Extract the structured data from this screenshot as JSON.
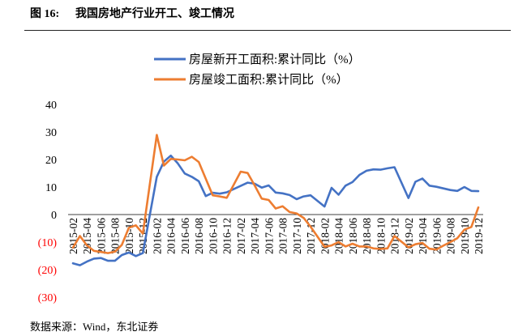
{
  "chart_data": {
    "type": "line",
    "figure_label": "图 16:",
    "title": "我国房地产行业开工、竣工情况",
    "grid": false,
    "legend_position": "top-center",
    "xlim": [
      "2015-02",
      "2019-12"
    ],
    "ylim": [
      -30,
      40
    ],
    "x_tick_labels": [
      "2015-02",
      "2015-04",
      "2015-06",
      "2015-08",
      "2015-10",
      "2015-12",
      "2016-02",
      "2016-04",
      "2016-06",
      "2016-08",
      "2016-10",
      "2016-12",
      "2017-02",
      "2017-04",
      "2017-06",
      "2017-08",
      "2017-10",
      "2017-12",
      "2018-02",
      "2018-04",
      "2018-06",
      "2018-08",
      "2018-10",
      "2018-12",
      "2019-02",
      "2019-04",
      "2019-06",
      "2019-08",
      "2019-10",
      "2019-12"
    ],
    "y_tick_values": [
      40,
      30,
      20,
      10,
      0,
      -10,
      -20,
      -30
    ],
    "y_tick_labels": [
      "40",
      "30",
      "20",
      "10",
      "0",
      "(10)",
      "(20)",
      "(30)"
    ],
    "tick_color": "#000000",
    "negative_tick_color": "#FF0000",
    "x": [
      "2015-02",
      "2015-03",
      "2015-04",
      "2015-05",
      "2015-06",
      "2015-07",
      "2015-08",
      "2015-09",
      "2015-10",
      "2015-11",
      "2015-12",
      "2016-02",
      "2016-03",
      "2016-04",
      "2016-05",
      "2016-06",
      "2016-07",
      "2016-08",
      "2016-09",
      "2016-10",
      "2016-11",
      "2016-12",
      "2017-02",
      "2017-03",
      "2017-04",
      "2017-05",
      "2017-06",
      "2017-07",
      "2017-08",
      "2017-09",
      "2017-10",
      "2017-11",
      "2017-12",
      "2018-02",
      "2018-03",
      "2018-04",
      "2018-05",
      "2018-06",
      "2018-07",
      "2018-08",
      "2018-09",
      "2018-10",
      "2018-11",
      "2018-12",
      "2019-02",
      "2019-03",
      "2019-04",
      "2019-05",
      "2019-06",
      "2019-07",
      "2019-08",
      "2019-09",
      "2019-10",
      "2019-11",
      "2019-12"
    ],
    "series": [
      {
        "name": "房屋新开工面积:累计同比（%）",
        "color": "#4472C4",
        "values": [
          -17.7,
          -18.4,
          -17.1,
          -16.0,
          -15.8,
          -16.8,
          -16.8,
          -14.7,
          -13.8,
          -15.1,
          -14.0,
          13.7,
          19.2,
          21.4,
          18.6,
          14.9,
          13.7,
          12.1,
          6.7,
          7.9,
          7.6,
          8.1,
          10.4,
          11.6,
          11.2,
          9.8,
          10.6,
          8.0,
          7.7,
          7.1,
          5.6,
          6.6,
          7.0,
          2.9,
          9.7,
          7.2,
          10.5,
          11.8,
          14.4,
          15.9,
          16.4,
          16.3,
          16.8,
          17.2,
          6.0,
          11.9,
          13.1,
          10.5,
          10.1,
          9.5,
          8.9,
          8.6,
          10.0,
          8.6,
          8.5
        ]
      },
      {
        "name": "房屋竣工面积:累计同比（%）",
        "color": "#ED7D31",
        "values": [
          -12.0,
          -7.8,
          -11.2,
          -13.2,
          -13.6,
          -14.0,
          -13.5,
          -11.0,
          -4.8,
          -3.9,
          -6.9,
          28.9,
          17.8,
          20.2,
          20.0,
          19.7,
          21.0,
          19.1,
          13.0,
          7.0,
          6.6,
          6.1,
          15.6,
          15.1,
          10.6,
          5.8,
          5.3,
          2.2,
          3.0,
          0.9,
          0.4,
          -1.2,
          -4.4,
          -11.7,
          -11.2,
          -10.0,
          -11.6,
          -10.6,
          -11.6,
          -11.6,
          -12.3,
          -12.5,
          -12.3,
          -7.8,
          -11.9,
          -10.8,
          -10.3,
          -12.4,
          -12.7,
          -11.3,
          -10.0,
          -8.6,
          -5.5,
          -4.5,
          2.6
        ]
      }
    ]
  },
  "source": "数据来源：Wind，东北证券"
}
